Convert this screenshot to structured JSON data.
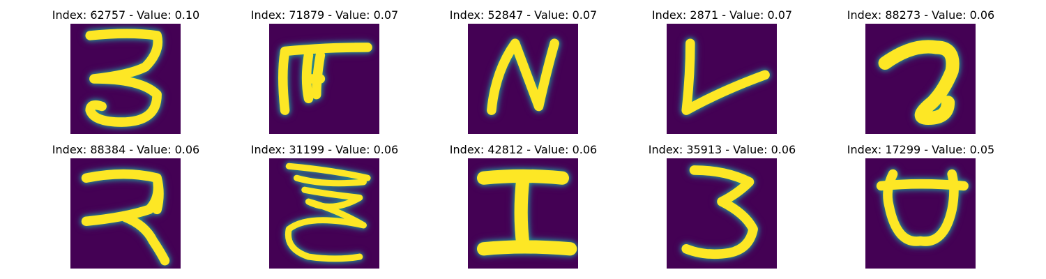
{
  "figure": {
    "palette": {
      "background": "#440154",
      "mid_low": "#31688e",
      "mid": "#21918c",
      "mid_high": "#5ec962",
      "foreground": "#fde725"
    },
    "panels": [
      {
        "title": "Index: 62757 - Value: 0.10",
        "glyph": "3",
        "index": 62757,
        "value": 0.1
      },
      {
        "title": "Index: 71879 - Value: 0.07",
        "glyph": "ᖷ",
        "index": 71879,
        "value": 0.07
      },
      {
        "title": "Index: 52847 - Value: 0.07",
        "glyph": "N",
        "index": 52847,
        "value": 0.07
      },
      {
        "title": "Index: 2871 - Value: 0.07",
        "glyph": "L",
        "index": 2871,
        "value": 0.07
      },
      {
        "title": "Index: 88273 - Value: 0.06",
        "glyph": "a",
        "index": 88273,
        "value": 0.06
      },
      {
        "title": "Index: 88384 - Value: 0.06",
        "glyph": "R",
        "index": 88384,
        "value": 0.06
      },
      {
        "title": "Index: 31199 - Value: 0.06",
        "glyph": "E",
        "index": 31199,
        "value": 0.06
      },
      {
        "title": "Index: 42812 - Value: 0.06",
        "glyph": "I",
        "index": 42812,
        "value": 0.06
      },
      {
        "title": "Index: 35913 - Value: 0.06",
        "glyph": "3",
        "index": 35913,
        "value": 0.06
      },
      {
        "title": "Index: 17299 - Value: 0.05",
        "glyph": "ʊ",
        "index": 17299,
        "value": 0.05
      }
    ]
  }
}
